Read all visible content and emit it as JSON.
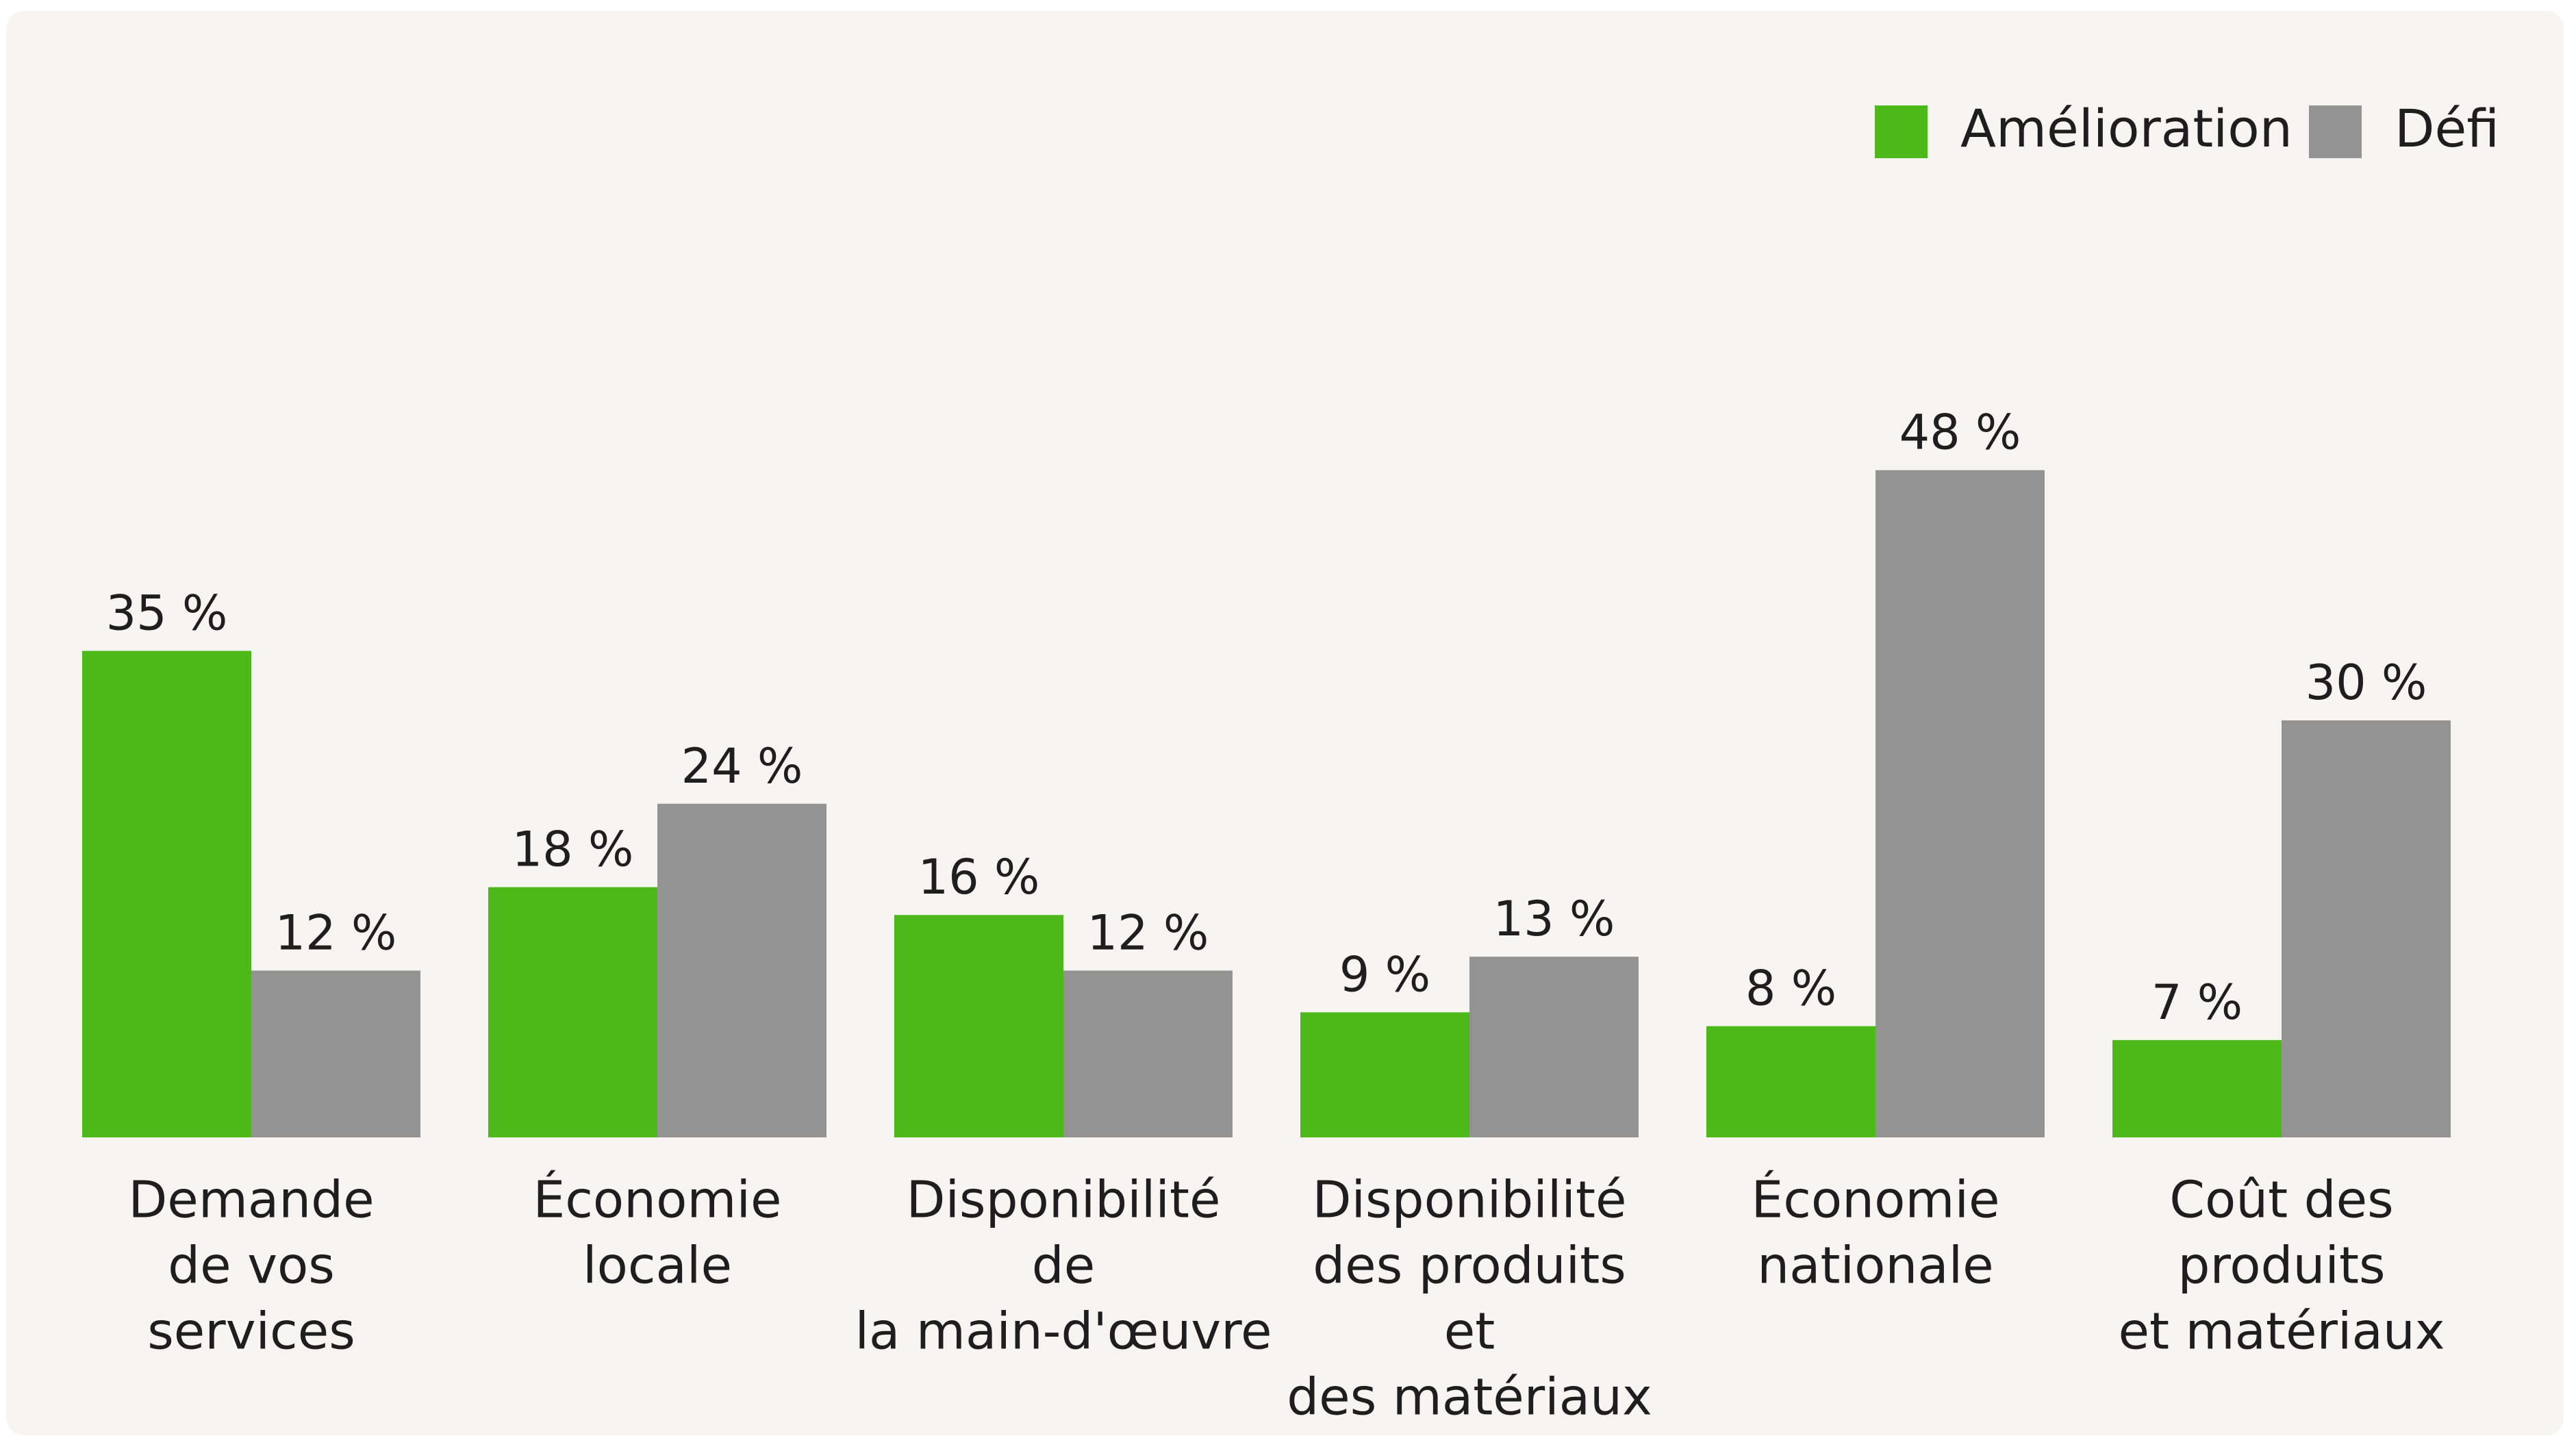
{
  "chart_data": {
    "type": "bar",
    "categories": [
      [
        "Demande",
        "de vos",
        "services"
      ],
      [
        "Économie",
        "locale"
      ],
      [
        "Disponibilité",
        "de",
        "la main-d'œuvre"
      ],
      [
        "Disponibilité",
        "des produits",
        "et",
        "des matériaux"
      ],
      [
        "Économie",
        "nationale"
      ],
      [
        "Coût des",
        "produits",
        "et matériaux"
      ]
    ],
    "series": [
      {
        "name": "Amélioration",
        "color": "#4cb81a",
        "values": [
          35,
          18,
          16,
          9,
          8,
          7
        ],
        "value_labels": [
          "35 %",
          "18 %",
          "16 %",
          "9 %",
          "8 %",
          "7 %"
        ]
      },
      {
        "name": "Défi",
        "color": "#939393",
        "values": [
          12,
          24,
          12,
          13,
          48,
          30
        ],
        "value_labels": [
          "12 %",
          "24 %",
          "12 %",
          "13 %",
          "48 %",
          "30 %"
        ]
      }
    ],
    "ylim": [
      0,
      60
    ],
    "legend": "top-right"
  }
}
